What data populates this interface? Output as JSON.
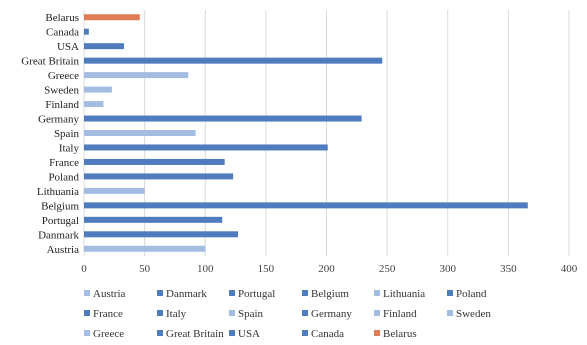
{
  "chart_data": {
    "type": "bar",
    "orientation": "horizontal",
    "title": "",
    "xlabel": "",
    "ylabel": "",
    "xlim": [
      0,
      400
    ],
    "xticks": [
      0,
      50,
      100,
      150,
      200,
      250,
      300,
      350,
      400
    ],
    "grid": "vertical",
    "legend_position": "bottom",
    "categories": [
      "Austria",
      "Danmark",
      "Portugal",
      "Belgium",
      "Lithuania",
      "Poland",
      "France",
      "Italy",
      "Spain",
      "Germany",
      "Finland",
      "Sweden",
      "Greece",
      "Great Britain",
      "USA",
      "Canada",
      "Belarus"
    ],
    "values": [
      100,
      127,
      114,
      366,
      50,
      123,
      116,
      201,
      92,
      229,
      16,
      23,
      86,
      246,
      33,
      4,
      46
    ],
    "colors": [
      "#a3bce2",
      "#4f7bbf",
      "#4f7bbf",
      "#4f7bbf",
      "#a3bce2",
      "#4f7bbf",
      "#4f7bbf",
      "#4f7bbf",
      "#a3bce2",
      "#4f7bbf",
      "#a3bce2",
      "#a3bce2",
      "#a3bce2",
      "#4f7bbf",
      "#4f7bbf",
      "#4f7bbf",
      "#e07b53"
    ]
  }
}
